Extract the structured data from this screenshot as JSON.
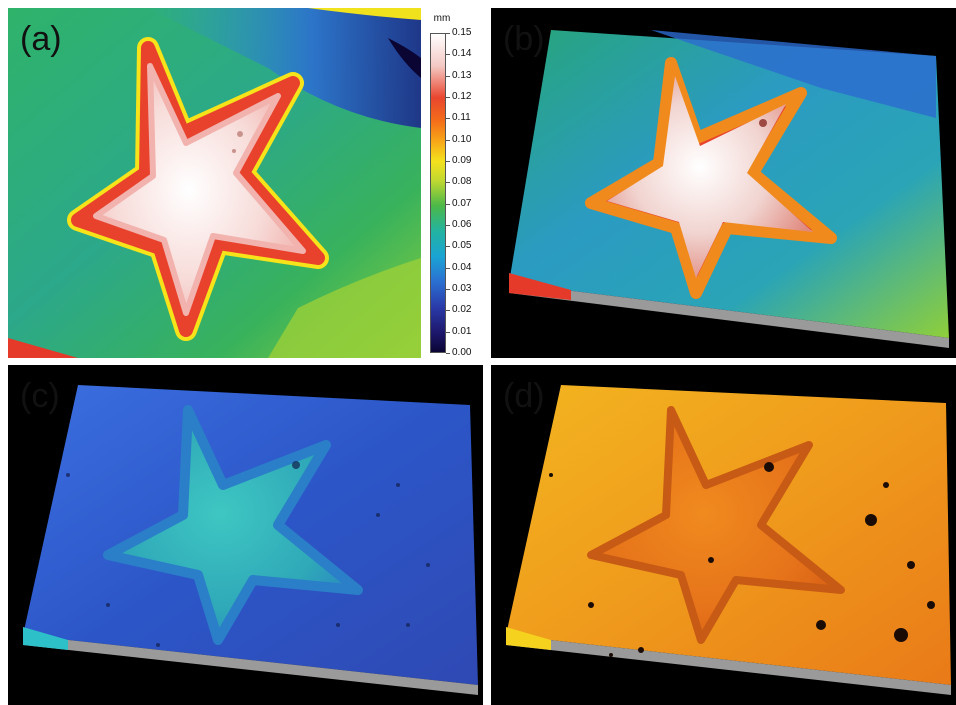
{
  "panels": [
    {
      "label": "(a)"
    },
    {
      "label": "(b)"
    },
    {
      "label": "(c)"
    },
    {
      "label": "(d)"
    }
  ],
  "colorbar": {
    "unit": "mm",
    "ticks": [
      "0.15",
      "0.14",
      "0.13",
      "0.12",
      "0.11",
      "0.10",
      "0.09",
      "0.08",
      "0.07",
      "0.06",
      "0.05",
      "0.04",
      "0.03",
      "0.02",
      "0.01",
      "0.00"
    ]
  },
  "colors": {
    "background": "#ffffff",
    "panel_black": "#000000",
    "star_high": "#ffffff",
    "star_edge": "#e5352b",
    "surface_green": "#3fb85a",
    "surface_blue": "#2a56c4",
    "surface_orange": "#f0a21c"
  }
}
